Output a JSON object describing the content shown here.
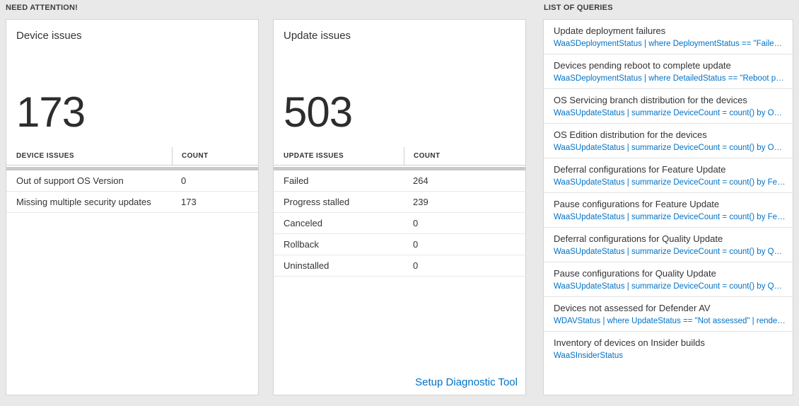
{
  "colors": {
    "accent_blue": "#0072c6",
    "background": "#e9e9e9",
    "card_border": "#d4d4d4",
    "text_dark": "#333333",
    "grid_bar_gray": "#c9c9c9"
  },
  "headings": {
    "need_attention": "NEED ATTENTION!",
    "list_of_queries": "LIST OF QUERIES"
  },
  "device_card": {
    "title": "Device issues",
    "big_number": "173",
    "table": {
      "headers": [
        "DEVICE ISSUES",
        "COUNT"
      ],
      "rows": [
        {
          "label": "Out of support OS Version",
          "count": "0"
        },
        {
          "label": "Missing multiple security updates",
          "count": "173"
        }
      ]
    }
  },
  "update_card": {
    "title": "Update issues",
    "big_number": "503",
    "table": {
      "headers": [
        "UPDATE ISSUES",
        "COUNT"
      ],
      "rows": [
        {
          "label": "Failed",
          "count": "264"
        },
        {
          "label": "Progress stalled",
          "count": "239"
        },
        {
          "label": "Canceled",
          "count": "0"
        },
        {
          "label": "Rollback",
          "count": "0"
        },
        {
          "label": "Uninstalled",
          "count": "0"
        }
      ]
    },
    "footer_link": "Setup Diagnostic Tool"
  },
  "queries": [
    {
      "title": "Update deployment failures",
      "query": "WaaSDeploymentStatus | where DeploymentStatus == \"Failed\" |..."
    },
    {
      "title": "Devices pending reboot to complete update",
      "query": "WaaSDeploymentStatus | where DetailedStatus == \"Reboot pend..."
    },
    {
      "title": "OS Servicing branch distribution for the devices",
      "query": "WaaSUpdateStatus | summarize DeviceCount = count() by OSSer..."
    },
    {
      "title": "OS Edition distribution for the devices",
      "query": "WaaSUpdateStatus | summarize DeviceCount = count() by OSEdit..."
    },
    {
      "title": "Deferral configurations for Feature Update",
      "query": "WaaSUpdateStatus | summarize DeviceCount = count() by Featur..."
    },
    {
      "title": "Pause configurations for Feature Update",
      "query": "WaaSUpdateStatus | summarize DeviceCount = count() by Featur..."
    },
    {
      "title": "Deferral configurations for Quality Update",
      "query": "WaaSUpdateStatus | summarize DeviceCount = count() by Qualit..."
    },
    {
      "title": "Pause configurations for Quality Update",
      "query": "WaaSUpdateStatus | summarize DeviceCount = count() by Qualit..."
    },
    {
      "title": "Devices not assessed for Defender AV",
      "query": "WDAVStatus | where UpdateStatus == \"Not assessed\" | render ta..."
    },
    {
      "title": "Inventory of devices on Insider builds",
      "query": "WaaSInsiderStatus"
    }
  ]
}
